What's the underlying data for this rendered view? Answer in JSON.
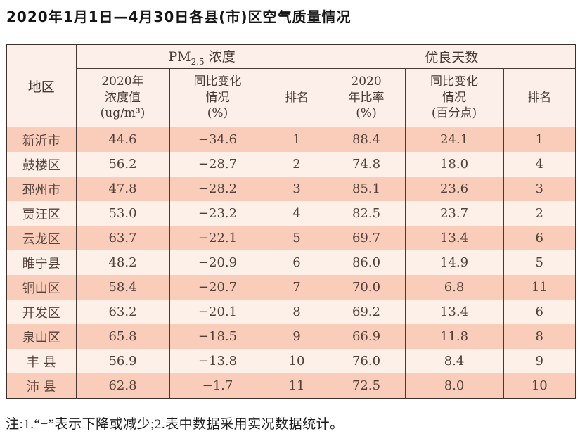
{
  "page": {
    "title": "2020年1月1日—4月30日各县(市)区空气质量情况",
    "footnote": "注:1.“−”表示下降或减少;2.表中数据采用实况数据统计。"
  },
  "colors": {
    "row_salmon": "#f9cdb9",
    "row_light": "#fdf0e9",
    "header_bg": "#fcefe9",
    "border": "#473a34",
    "text": "#4e413b"
  },
  "table": {
    "header": {
      "region": "地区",
      "pm25_group": {
        "prefix": "PM",
        "sub": "2.5",
        "suffix": " 浓度"
      },
      "good_days_group": "优良天数",
      "pm25_value": "2020年\n浓度值\n(ug/m³)",
      "pm25_change": "同比变化\n情况\n(%)",
      "pm25_rank": "排名",
      "good_rate": "2020\n年比率\n(%)",
      "good_change": "同比变化\n情况\n(百分点)",
      "good_rank": "排名"
    },
    "rows": [
      {
        "region": "新沂市",
        "pm25_value": "44.6",
        "pm25_change": "−34.6",
        "pm25_rank": "1",
        "good_rate": "88.4",
        "good_change": "24.1",
        "good_rank": "1"
      },
      {
        "region": "鼓楼区",
        "pm25_value": "56.2",
        "pm25_change": "−28.7",
        "pm25_rank": "2",
        "good_rate": "74.8",
        "good_change": "18.0",
        "good_rank": "4"
      },
      {
        "region": "邳州市",
        "pm25_value": "47.8",
        "pm25_change": "−28.2",
        "pm25_rank": "3",
        "good_rate": "85.1",
        "good_change": "23.6",
        "good_rank": "3"
      },
      {
        "region": "贾汪区",
        "pm25_value": "53.0",
        "pm25_change": "−23.2",
        "pm25_rank": "4",
        "good_rate": "82.5",
        "good_change": "23.7",
        "good_rank": "2"
      },
      {
        "region": "云龙区",
        "pm25_value": "63.7",
        "pm25_change": "−22.1",
        "pm25_rank": "5",
        "good_rate": "69.7",
        "good_change": "13.4",
        "good_rank": "6"
      },
      {
        "region": "睢宁县",
        "pm25_value": "48.2",
        "pm25_change": "−20.9",
        "pm25_rank": "6",
        "good_rate": "86.0",
        "good_change": "14.9",
        "good_rank": "5"
      },
      {
        "region": "铜山区",
        "pm25_value": "58.4",
        "pm25_change": "−20.7",
        "pm25_rank": "7",
        "good_rate": "70.0",
        "good_change": "6.8",
        "good_rank": "11"
      },
      {
        "region": "开发区",
        "pm25_value": "63.2",
        "pm25_change": "−20.1",
        "pm25_rank": "8",
        "good_rate": "69.2",
        "good_change": "13.4",
        "good_rank": "6"
      },
      {
        "region": "泉山区",
        "pm25_value": "65.8",
        "pm25_change": "−18.5",
        "pm25_rank": "9",
        "good_rate": "66.9",
        "good_change": "11.8",
        "good_rank": "8"
      },
      {
        "region": "丰 县",
        "pm25_value": "56.9",
        "pm25_change": "−13.8",
        "pm25_rank": "10",
        "good_rate": "76.0",
        "good_change": "8.4",
        "good_rank": "9"
      },
      {
        "region": "沛 县",
        "pm25_value": "62.8",
        "pm25_change": "−1.7",
        "pm25_rank": "11",
        "good_rate": "72.5",
        "good_change": "8.0",
        "good_rank": "10"
      }
    ]
  }
}
